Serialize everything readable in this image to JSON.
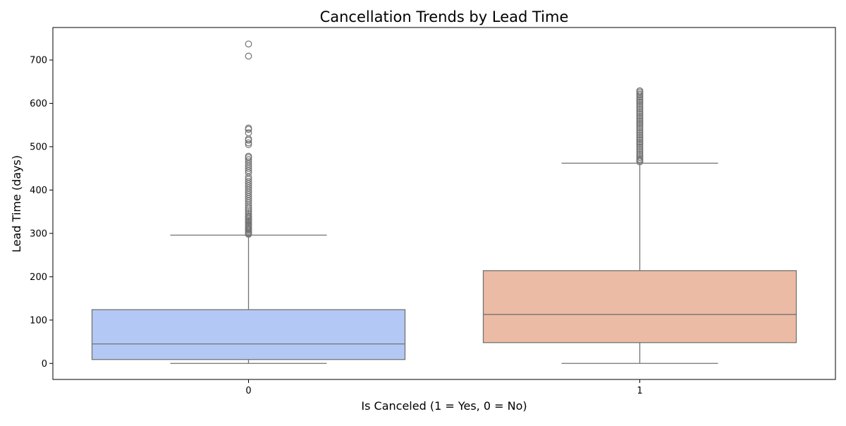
{
  "chart_data": {
    "type": "box",
    "title": "Cancellation Trends by Lead Time",
    "xlabel": "Is Canceled (1 = Yes, 0 = No)",
    "ylabel": "Lead Time (days)",
    "categories": [
      "0",
      "1"
    ],
    "ylim": [
      -37,
      775
    ],
    "yticks": [
      0,
      100,
      200,
      300,
      400,
      500,
      600,
      700
    ],
    "grid": false,
    "colors": {
      "box_0": "#b3c8f4",
      "box_1": "#ebbba5",
      "line": "#737373",
      "outlier_edge": "#737373"
    },
    "boxes": [
      {
        "category": "0",
        "min": 0,
        "q1": 9,
        "median": 45,
        "q3": 124,
        "whisker_high": 296,
        "outliers": [
          298,
          300,
          302,
          305,
          308,
          310,
          313,
          316,
          319,
          322,
          325,
          328,
          331,
          334,
          337,
          340,
          344,
          348,
          352,
          356,
          360,
          365,
          370,
          375,
          380,
          385,
          390,
          395,
          400,
          405,
          410,
          415,
          420,
          425,
          430,
          440,
          445,
          450,
          455,
          460,
          465,
          470,
          475,
          478,
          505,
          509,
          515,
          518,
          532,
          540,
          543,
          709,
          737
        ]
      },
      {
        "category": "1",
        "min": 0,
        "q1": 48,
        "median": 113,
        "q3": 214,
        "whisker_high": 462,
        "outliers": [
          465,
          468,
          471,
          475,
          479,
          483,
          487,
          491,
          495,
          499,
          503,
          507,
          511,
          515,
          519,
          523,
          527,
          531,
          535,
          539,
          543,
          547,
          551,
          555,
          559,
          563,
          567,
          571,
          575,
          579,
          583,
          587,
          591,
          595,
          599,
          603,
          607,
          611,
          615,
          619,
          622,
          626,
          629
        ]
      }
    ]
  }
}
